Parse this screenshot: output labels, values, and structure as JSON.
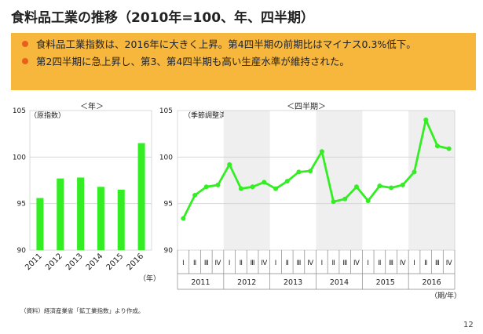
{
  "title": "食料品工業の推移（2010年=100、年、四半期）",
  "summary": {
    "bullets": [
      "食料品工業指数は、2016年に大きく上昇。第4四半期の前期比はマイナス0.3%低下。",
      "第2四半期に急上昇し、第3、第4四半期も高い生産水準が維持された。"
    ]
  },
  "colors": {
    "series": "#33ee22",
    "accent": "#e8601c",
    "summary_bg": "#f7b63c",
    "band": "#efefef"
  },
  "chart_data": [
    {
      "type": "bar",
      "panel_label": "＜年＞",
      "ylabel": "（原指数）",
      "xunit": "（年）",
      "categories": [
        "2011",
        "2012",
        "2013",
        "2014",
        "2015",
        "2016"
      ],
      "values": [
        95.6,
        97.7,
        97.8,
        96.8,
        96.5,
        101.5
      ],
      "yticks": [
        "105",
        "100",
        "95",
        "90"
      ],
      "ylim": [
        90,
        105
      ]
    },
    {
      "type": "line",
      "panel_label": "＜四半期＞",
      "ylabel": "（季節調整済）",
      "xunit": "（期/年）",
      "quarters": [
        "Ⅰ",
        "Ⅱ",
        "Ⅲ",
        "Ⅳ"
      ],
      "years": [
        "2011",
        "2012",
        "2013",
        "2014",
        "2015",
        "2016"
      ],
      "values": [
        93.4,
        95.9,
        96.8,
        97.0,
        99.2,
        96.6,
        96.8,
        97.3,
        96.6,
        97.4,
        98.4,
        98.5,
        100.6,
        95.2,
        95.5,
        96.8,
        95.3,
        96.9,
        96.7,
        97.0,
        98.4,
        104.0,
        101.2,
        100.9
      ],
      "yticks": [
        "105",
        "100",
        "95",
        "90"
      ],
      "ylim": [
        90,
        105
      ],
      "shaded_years": [
        "2012",
        "2014",
        "2016"
      ]
    }
  ],
  "source": "（資料）経済産業省「鉱工業指数」より作成。",
  "page_number": "12"
}
